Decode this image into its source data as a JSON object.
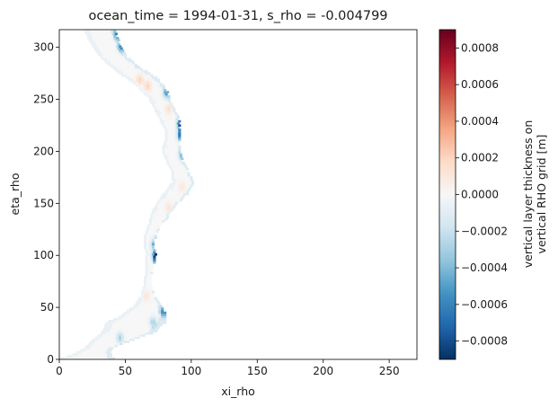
{
  "chart_data": {
    "type": "heatmap",
    "title": "ocean_time = 1994-01-31, s_rho = -0.004799",
    "xlabel": "xi_rho",
    "ylabel": "eta_rho",
    "xlim": [
      0,
      271
    ],
    "ylim": [
      0,
      317
    ],
    "xticks": [
      0,
      50,
      100,
      150,
      200,
      250
    ],
    "yticks": [
      0,
      50,
      100,
      150,
      200,
      250,
      300
    ],
    "colorbar": {
      "label_line1": "vertical layer thickness on",
      "label_line2": "vertical RHO grid [m]",
      "vmin": -0.0009,
      "vmax": 0.0009,
      "ticks": [
        -0.0008,
        -0.0006,
        -0.0004,
        -0.0002,
        0.0,
        0.0002,
        0.0004,
        0.0006,
        0.0008
      ],
      "tick_labels": [
        "−0.0008",
        "−0.0006",
        "−0.0004",
        "−0.0002",
        "0.0000",
        "0.0002",
        "0.0004",
        "0.0006",
        "0.0008"
      ],
      "colormap": "RdBu_r",
      "colors": [
        "#053061",
        "#2166ac",
        "#4393c3",
        "#92c5de",
        "#d1e5f0",
        "#f7f7f7",
        "#fddbc7",
        "#f4a582",
        "#d6604d",
        "#b2182b",
        "#67001f"
      ]
    },
    "river_channel": {
      "left_bank_x": [
        [
          0,
          0
        ],
        [
          2,
          6
        ],
        [
          5,
          12
        ],
        [
          10,
          19
        ],
        [
          20,
          27
        ],
        [
          25,
          32
        ],
        [
          35,
          36
        ],
        [
          40,
          45
        ],
        [
          50,
          56
        ],
        [
          60,
          62
        ],
        [
          70,
          64
        ],
        [
          80,
          65
        ],
        [
          90,
          65
        ],
        [
          100,
          66
        ],
        [
          110,
          64
        ],
        [
          120,
          65
        ],
        [
          130,
          68
        ],
        [
          140,
          70
        ],
        [
          150,
          74
        ],
        [
          160,
          80
        ],
        [
          170,
          86
        ],
        [
          180,
          85
        ],
        [
          190,
          81
        ],
        [
          200,
          78
        ],
        [
          210,
          80
        ],
        [
          220,
          80
        ],
        [
          230,
          76
        ],
        [
          240,
          72
        ],
        [
          250,
          68
        ],
        [
          260,
          60
        ],
        [
          270,
          50
        ],
        [
          280,
          39
        ],
        [
          290,
          31
        ],
        [
          300,
          25
        ],
        [
          310,
          21
        ],
        [
          317,
          19
        ]
      ],
      "right_bank_x": [
        [
          0,
          42
        ],
        [
          2,
          40
        ],
        [
          5,
          38
        ],
        [
          10,
          40
        ],
        [
          20,
          60
        ],
        [
          25,
          72
        ],
        [
          35,
          80
        ],
        [
          40,
          81
        ],
        [
          50,
          77
        ],
        [
          60,
          72
        ],
        [
          70,
          70
        ],
        [
          80,
          69
        ],
        [
          90,
          71
        ],
        [
          100,
          73
        ],
        [
          110,
          71
        ],
        [
          120,
          73
        ],
        [
          130,
          78
        ],
        [
          140,
          84
        ],
        [
          150,
          90
        ],
        [
          160,
          98
        ],
        [
          170,
          101
        ],
        [
          180,
          97
        ],
        [
          190,
          93
        ],
        [
          200,
          91
        ],
        [
          210,
          91
        ],
        [
          220,
          91
        ],
        [
          230,
          90
        ],
        [
          240,
          87
        ],
        [
          250,
          83
        ],
        [
          260,
          80
        ],
        [
          270,
          73
        ],
        [
          280,
          60
        ],
        [
          290,
          51
        ],
        [
          300,
          46
        ],
        [
          310,
          43
        ],
        [
          317,
          41
        ]
      ],
      "anomalies": [
        {
          "eta": 225,
          "xi": 91,
          "value": -0.0008
        },
        {
          "eta": 215,
          "xi": 91,
          "value": -0.0006
        },
        {
          "eta": 97,
          "xi": 73,
          "value": -0.0009
        },
        {
          "eta": 100,
          "xi": 72,
          "value": -0.0005
        },
        {
          "eta": 110,
          "xi": 71,
          "value": -0.0004
        },
        {
          "eta": 287,
          "xi": 60,
          "value": -0.0005
        },
        {
          "eta": 300,
          "xi": 46,
          "value": -0.0005
        },
        {
          "eta": 312,
          "xi": 43,
          "value": -0.0006
        },
        {
          "eta": 262,
          "xi": 66,
          "value": 0.0002
        },
        {
          "eta": 268,
          "xi": 60,
          "value": 0.0002
        },
        {
          "eta": 240,
          "xi": 82,
          "value": 0.00015
        },
        {
          "eta": 165,
          "xi": 92,
          "value": 0.0001
        },
        {
          "eta": 145,
          "xi": 82,
          "value": 0.00012
        },
        {
          "eta": 45,
          "xi": 78,
          "value": -0.0005
        },
        {
          "eta": 35,
          "xi": 70,
          "value": -0.0003
        },
        {
          "eta": 20,
          "xi": 45,
          "value": -0.0003
        },
        {
          "eta": 60,
          "xi": 65,
          "value": 0.0001
        },
        {
          "eta": 255,
          "xi": 80,
          "value": -0.0004
        },
        {
          "eta": 195,
          "xi": 92,
          "value": -0.0003
        }
      ]
    }
  }
}
